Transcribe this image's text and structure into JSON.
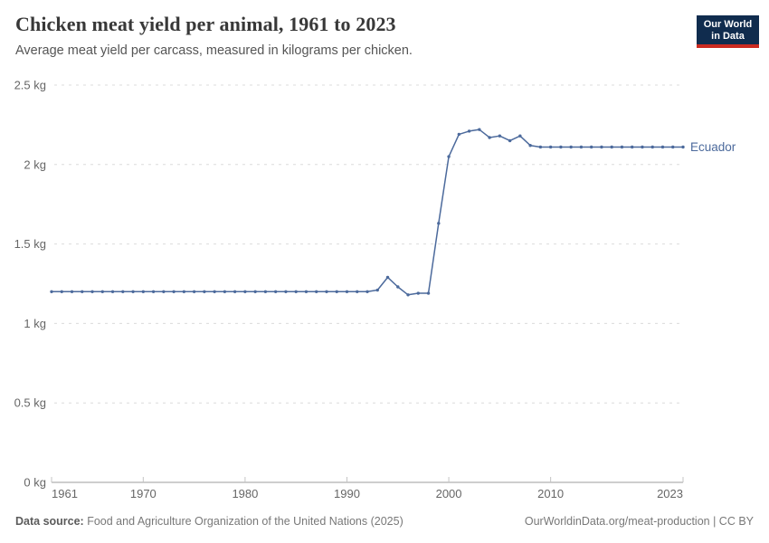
{
  "header": {
    "title": "Chicken meat yield per animal, 1961 to 2023",
    "subtitle": "Average meat yield per carcass, measured in kilograms per chicken.",
    "logo": {
      "line1": "Our World",
      "line2": "in Data",
      "bg_color": "#102c4e",
      "bar_color": "#cb2a20"
    }
  },
  "chart_data": {
    "type": "line",
    "title": "Chicken meat yield per animal, 1961 to 2023",
    "xlabel": "",
    "ylabel": "kg per chicken",
    "xlim": [
      1961,
      2023
    ],
    "ylim": [
      0,
      2.5
    ],
    "grid": "horizontal dashed",
    "legend_position": "end-of-line label",
    "x_ticks": [
      1961,
      1970,
      1980,
      1990,
      2000,
      2010,
      2023
    ],
    "y_ticks": [
      {
        "value": 0,
        "label": "0 kg"
      },
      {
        "value": 0.5,
        "label": "0.5 kg"
      },
      {
        "value": 1,
        "label": "1 kg"
      },
      {
        "value": 1.5,
        "label": "1.5 kg"
      },
      {
        "value": 2,
        "label": "2 kg"
      },
      {
        "value": 2.5,
        "label": "2.5 kg"
      }
    ],
    "series": [
      {
        "name": "Ecuador",
        "color": "#4C6A9C",
        "years": [
          1961,
          1962,
          1963,
          1964,
          1965,
          1966,
          1967,
          1968,
          1969,
          1970,
          1971,
          1972,
          1973,
          1974,
          1975,
          1976,
          1977,
          1978,
          1979,
          1980,
          1981,
          1982,
          1983,
          1984,
          1985,
          1986,
          1987,
          1988,
          1989,
          1990,
          1991,
          1992,
          1993,
          1994,
          1995,
          1996,
          1997,
          1998,
          1999,
          2000,
          2001,
          2002,
          2003,
          2004,
          2005,
          2006,
          2007,
          2008,
          2009,
          2010,
          2011,
          2012,
          2013,
          2014,
          2015,
          2016,
          2017,
          2018,
          2019,
          2020,
          2021,
          2022,
          2023
        ],
        "values": [
          1.2,
          1.2,
          1.2,
          1.2,
          1.2,
          1.2,
          1.2,
          1.2,
          1.2,
          1.2,
          1.2,
          1.2,
          1.2,
          1.2,
          1.2,
          1.2,
          1.2,
          1.2,
          1.2,
          1.2,
          1.2,
          1.2,
          1.2,
          1.2,
          1.2,
          1.2,
          1.2,
          1.2,
          1.2,
          1.2,
          1.2,
          1.2,
          1.21,
          1.29,
          1.23,
          1.18,
          1.19,
          1.19,
          1.63,
          2.05,
          2.19,
          2.21,
          2.22,
          2.17,
          2.18,
          2.15,
          2.18,
          2.12,
          2.11,
          2.11,
          2.11,
          2.11,
          2.11,
          2.11,
          2.11,
          2.11,
          2.11,
          2.11,
          2.11,
          2.11,
          2.11,
          2.11,
          2.11
        ]
      }
    ]
  },
  "footer": {
    "source_label": "Data source:",
    "source_text": "Food and Agriculture Organization of the United Nations (2025)",
    "link_text": "OurWorldinData.org/meat-production | CC BY"
  }
}
